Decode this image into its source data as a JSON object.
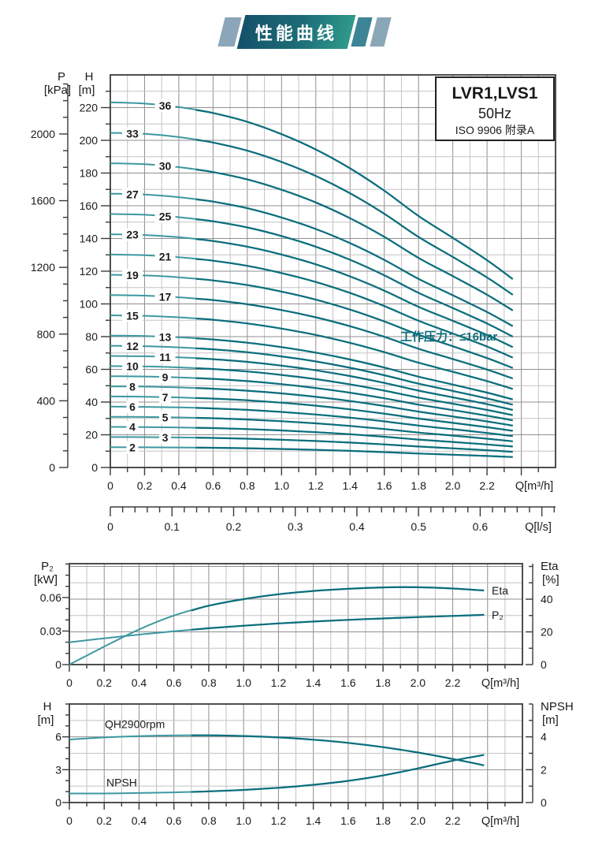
{
  "banner": {
    "title": "性能曲线"
  },
  "palette": {
    "curve_dark": "#0c6e7c",
    "curve_light": "#3d98a0",
    "grid_major": "#8f8f8f",
    "grid_minor": "#c3c3c3",
    "border": "#3a3a3a",
    "text": "#1a1a1a",
    "annotation_teal": "#0c6b7a"
  },
  "chart_data": [
    {
      "type": "line",
      "id": "qh-multistage",
      "title_box": {
        "model": "LVR1,LVS1",
        "frequency": "50Hz",
        "standard": "ISO 9906 附录A"
      },
      "annotation": "工作压力：≤16bar",
      "pressure_axis": {
        "label": "P",
        "unit": "[kPa]",
        "tick_labels": [
          "0",
          "400",
          "800",
          "1200",
          "1600",
          "2000"
        ],
        "tick_values": [
          0,
          400,
          800,
          1200,
          1600,
          2000
        ],
        "minor_step": 100,
        "axis_max": 2300,
        "kpa_to_m": 0.10194
      },
      "head_axis": {
        "label": "H",
        "unit": "[m]",
        "tick_labels": [
          "0",
          "20",
          "40",
          "60",
          "80",
          "100",
          "120",
          "140",
          "160",
          "180",
          "200",
          "220"
        ],
        "tick_values": [
          0,
          20,
          40,
          60,
          80,
          100,
          120,
          140,
          160,
          180,
          200,
          220
        ],
        "minor_step": 10,
        "range": [
          0,
          240
        ]
      },
      "x_axis": {
        "unit": "Q[m³/h]",
        "tick_labels": [
          "0",
          "0.2",
          "0.4",
          "0.6",
          "0.8",
          "1.0",
          "1.2",
          "1.4",
          "1.6",
          "1.8",
          "2.0",
          "2.2"
        ],
        "tick_values": [
          0,
          0.2,
          0.4,
          0.6,
          0.8,
          1.0,
          1.2,
          1.4,
          1.6,
          1.8,
          2.0,
          2.2
        ],
        "range": [
          0,
          2.6
        ],
        "minor_step": 0.1
      },
      "x_axis_secondary": {
        "unit": "Q[l/s]",
        "tick_labels": [
          "0",
          "0.1",
          "0.2",
          "0.3",
          "0.4",
          "0.5",
          "0.6"
        ],
        "tick_values": [
          0,
          0.1,
          0.2,
          0.3,
          0.4,
          0.5,
          0.6
        ],
        "range": [
          0,
          0.72
        ],
        "minor_step": 0.02,
        "factor_to_m3h": 3.6
      },
      "stages": [
        36,
        33,
        30,
        27,
        25,
        23,
        21,
        19,
        17,
        15,
        13,
        12,
        11,
        10,
        9,
        8,
        7,
        6,
        5,
        4,
        3,
        2
      ],
      "q_samples": [
        0,
        0.2,
        0.4,
        0.6,
        0.8,
        1.0,
        1.2,
        1.4,
        1.6,
        1.8,
        2.0,
        2.2,
        2.35
      ],
      "per_stage_head_m": [
        6.2,
        6.18,
        6.12,
        6.02,
        5.87,
        5.66,
        5.4,
        5.08,
        4.7,
        4.27,
        3.9,
        3.52,
        3.2
      ],
      "stage_label_q_far": 0.32,
      "stage_label_q_near": 0.129
    },
    {
      "type": "line",
      "id": "power-efficiency",
      "left_axis": {
        "label": "P₂",
        "unit": "[kW]",
        "tick_labels": [
          "0",
          "0.03",
          "0.06"
        ],
        "tick_values": [
          0,
          0.03,
          0.06
        ],
        "minor_step": 0.01,
        "range": [
          0,
          0.0903
        ]
      },
      "right_axis": {
        "label": "Eta",
        "unit": "[%]",
        "tick_labels": [
          "0",
          "20",
          "40"
        ],
        "tick_values": [
          0,
          20,
          40
        ],
        "minor_step": 10,
        "range": [
          0,
          61.7
        ]
      },
      "x_axis": {
        "unit": "Q[m³/h]",
        "tick_labels": [
          "0",
          "0.2",
          "0.4",
          "0.6",
          "0.8",
          "1.0",
          "1.2",
          "1.4",
          "1.6",
          "1.8",
          "2.0",
          "2.2"
        ],
        "tick_values": [
          0,
          0.2,
          0.4,
          0.6,
          0.8,
          1.0,
          1.2,
          1.4,
          1.6,
          1.8,
          2.0,
          2.2
        ],
        "range": [
          0,
          2.6
        ],
        "minor_step": 0.1
      },
      "series": [
        {
          "name": "P₂",
          "axis": "left",
          "x": [
            0,
            0.2,
            0.4,
            0.6,
            0.8,
            1.0,
            1.2,
            1.4,
            1.6,
            1.8,
            2.0,
            2.2,
            2.38
          ],
          "y": [
            0.02,
            0.0235,
            0.0268,
            0.0298,
            0.0325,
            0.0348,
            0.0368,
            0.0385,
            0.04,
            0.0413,
            0.0425,
            0.0435,
            0.0445
          ]
        },
        {
          "name": "Eta",
          "axis": "right",
          "x": [
            0,
            0.2,
            0.4,
            0.6,
            0.8,
            1.0,
            1.2,
            1.4,
            1.6,
            1.8,
            2.0,
            2.2,
            2.38
          ],
          "y": [
            0,
            11,
            21.5,
            30,
            36,
            40,
            43,
            45,
            46.3,
            47.2,
            47.3,
            46.5,
            45.3
          ]
        }
      ]
    },
    {
      "type": "line",
      "id": "h-npsh",
      "left_axis": {
        "label": "H",
        "unit": "[m]",
        "tick_labels": [
          "0",
          "3",
          "6"
        ],
        "tick_values": [
          0,
          3,
          6
        ],
        "minor_step": 1,
        "range": [
          0,
          9
        ]
      },
      "right_axis": {
        "label": "NPSH",
        "unit": "[m]",
        "tick_labels": [
          "0",
          "2",
          "4"
        ],
        "tick_values": [
          0,
          2,
          4
        ],
        "minor_step": 1,
        "range": [
          0,
          6
        ]
      },
      "x_axis": {
        "unit": "Q[m³/h]",
        "tick_labels": [
          "0",
          "0.2",
          "0.4",
          "0.6",
          "0.8",
          "1.0",
          "1.2",
          "1.4",
          "1.6",
          "1.8",
          "2.0",
          "2.2"
        ],
        "tick_values": [
          0,
          0.2,
          0.4,
          0.6,
          0.8,
          1.0,
          1.2,
          1.4,
          1.6,
          1.8,
          2.0,
          2.2
        ],
        "range": [
          0,
          2.6
        ],
        "minor_step": 0.1
      },
      "series": [
        {
          "name": "QH2900rpm",
          "axis": "left",
          "x": [
            0,
            0.2,
            0.4,
            0.6,
            0.8,
            1.0,
            1.2,
            1.4,
            1.6,
            1.8,
            2.0,
            2.2,
            2.38
          ],
          "y": [
            5.75,
            5.95,
            6.07,
            6.13,
            6.14,
            6.08,
            5.95,
            5.74,
            5.45,
            5.06,
            4.57,
            3.98,
            3.4
          ]
        },
        {
          "name": "NPSH",
          "axis": "right",
          "x": [
            0,
            0.2,
            0.4,
            0.6,
            0.8,
            1.0,
            1.2,
            1.4,
            1.6,
            1.8,
            2.0,
            2.2,
            2.38
          ],
          "y": [
            0.55,
            0.55,
            0.58,
            0.62,
            0.68,
            0.77,
            0.9,
            1.08,
            1.32,
            1.65,
            2.08,
            2.55,
            2.9
          ]
        }
      ]
    }
  ]
}
